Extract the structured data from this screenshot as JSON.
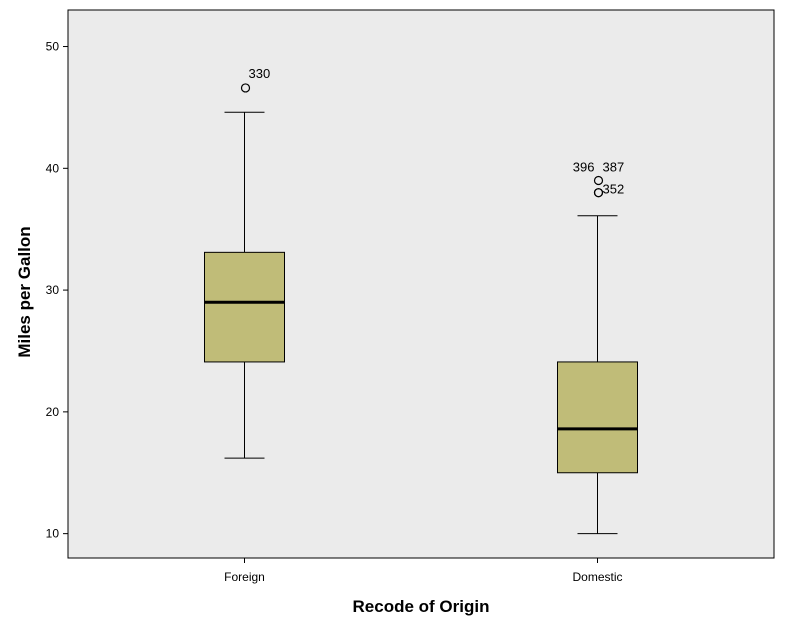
{
  "chart_data": {
    "type": "boxplot",
    "title": "",
    "xlabel": "Recode of Origin",
    "ylabel": "Miles per Gallon",
    "ylim": [
      8,
      53
    ],
    "yticks": [
      10,
      20,
      30,
      40,
      50
    ],
    "grid": false,
    "colors": {
      "plot_background": "#ebebeb",
      "box_fill": "#c0bc78",
      "stroke": "#000000"
    },
    "categories": [
      "Foreign",
      "Domestic"
    ],
    "boxes": [
      {
        "category": "Foreign",
        "whisker_low": 16.2,
        "q1": 24.1,
        "median": 29.0,
        "q3": 33.1,
        "whisker_high": 44.6,
        "outliers": [
          {
            "value": 46.6,
            "label": "330"
          }
        ]
      },
      {
        "category": "Domestic",
        "whisker_low": 10.0,
        "q1": 15.0,
        "median": 18.6,
        "q3": 24.1,
        "whisker_high": 36.1,
        "outliers": [
          {
            "value": 39.0,
            "label": "387"
          },
          {
            "value": 38.0,
            "label": "352"
          },
          {
            "value": 38.0,
            "label": "396"
          }
        ]
      }
    ]
  }
}
